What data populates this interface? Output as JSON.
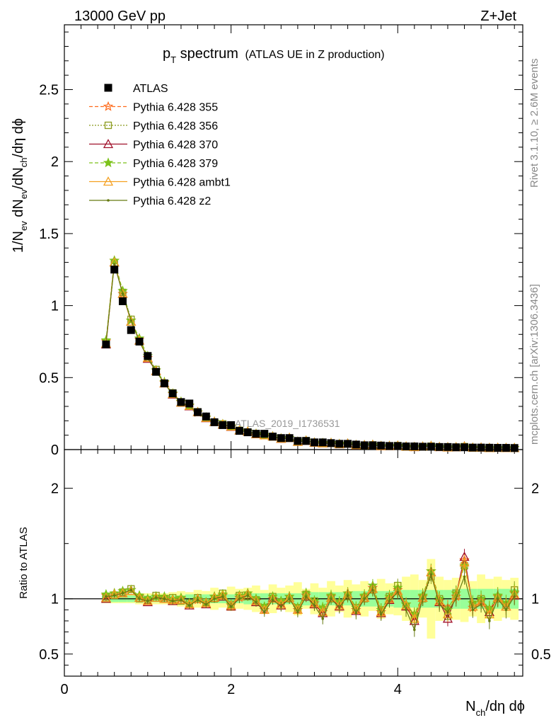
{
  "header": {
    "left": "13000 GeV pp",
    "right": "Z+Jet"
  },
  "title": {
    "main": "p",
    "main_sub": "T",
    "main_rest": " spectrum",
    "detail": "(ATLAS UE in Z production)"
  },
  "side_labels": {
    "rivet": "Rivet 3.1.10, ≥ 2.6M events",
    "mcplots": "mcplots.cern.ch [arXiv:1306.3436]"
  },
  "watermark": "ATLAS_2019_I1736531",
  "axes": {
    "ylabel_main": "1/N",
    "ylabel_main_parts": [
      "1/N",
      "ev",
      " dN",
      "ev",
      "/dN",
      "ch",
      "/dη dϕ"
    ],
    "ylabel_ratio": "Ratio to ATLAS",
    "xlabel_parts": [
      "N",
      "ch",
      "/dη dϕ"
    ],
    "main_yticks": [
      "0",
      "0.5",
      "1",
      "1.5",
      "2",
      "2.5"
    ],
    "ratio_yticks_left": [
      "0.5",
      "1",
      "2"
    ],
    "ratio_yticks_right": [
      "0.5",
      "1",
      "2"
    ],
    "xticks": [
      "0",
      "2",
      "4"
    ]
  },
  "legend": [
    {
      "label": "ATLAS",
      "color": "#000000",
      "marker": "square-filled",
      "line": "none"
    },
    {
      "label": "Pythia 6.428 355",
      "color": "#ff6a1a",
      "marker": "star-open",
      "line": "dashed"
    },
    {
      "label": "Pythia 6.428 356",
      "color": "#8a9a1c",
      "marker": "square-open",
      "line": "dotted"
    },
    {
      "label": "Pythia 6.428 370",
      "color": "#a0102a",
      "marker": "triangle-open",
      "line": "solid"
    },
    {
      "label": "Pythia 6.428 379",
      "color": "#7cc21a",
      "marker": "star-filled",
      "line": "dashed"
    },
    {
      "label": "Pythia 6.428 ambt1",
      "color": "#f4a020",
      "marker": "triangle-open",
      "line": "solid"
    },
    {
      "label": "Pythia 6.428 z2",
      "color": "#667a12",
      "marker": "dot",
      "line": "solid"
    }
  ],
  "chart_data": {
    "type": "line",
    "xlim": [
      0,
      5.5
    ],
    "ylim_main": [
      0,
      2.95
    ],
    "ylim_ratio": [
      0.3,
      2.35
    ],
    "x": [
      0.5,
      0.6,
      0.7,
      0.8,
      0.9,
      1.0,
      1.1,
      1.2,
      1.3,
      1.4,
      1.5,
      1.6,
      1.7,
      1.8,
      1.9,
      2.0,
      2.1,
      2.2,
      2.3,
      2.4,
      2.5,
      2.6,
      2.7,
      2.8,
      2.9,
      3.0,
      3.1,
      3.2,
      3.3,
      3.4,
      3.5,
      3.6,
      3.7,
      3.8,
      3.9,
      4.0,
      4.1,
      4.2,
      4.3,
      4.4,
      4.5,
      4.6,
      4.7,
      4.8,
      4.9,
      5.0,
      5.1,
      5.2,
      5.3,
      5.4
    ],
    "data_values": [
      0.73,
      1.25,
      1.03,
      0.83,
      0.75,
      0.65,
      0.54,
      0.46,
      0.39,
      0.33,
      0.32,
      0.26,
      0.23,
      0.19,
      0.17,
      0.17,
      0.13,
      0.12,
      0.11,
      0.11,
      0.09,
      0.08,
      0.08,
      0.06,
      0.06,
      0.05,
      0.05,
      0.045,
      0.04,
      0.04,
      0.035,
      0.03,
      0.03,
      0.028,
      0.025,
      0.025,
      0.022,
      0.022,
      0.02,
      0.02,
      0.018,
      0.018,
      0.016,
      0.016,
      0.014,
      0.014,
      0.013,
      0.012,
      0.012,
      0.011
    ],
    "ratio_band_inner": [
      0.03,
      0.03,
      0.03,
      0.03,
      0.03,
      0.03,
      0.03,
      0.03,
      0.03,
      0.03,
      0.04,
      0.04,
      0.04,
      0.04,
      0.04,
      0.04,
      0.04,
      0.05,
      0.05,
      0.05,
      0.05,
      0.05,
      0.05,
      0.05,
      0.06,
      0.06,
      0.06,
      0.06,
      0.06,
      0.06,
      0.07,
      0.07,
      0.07,
      0.07,
      0.07,
      0.08,
      0.08,
      0.08,
      0.08,
      0.08,
      0.08,
      0.08,
      0.09,
      0.09,
      0.09,
      0.09,
      0.09,
      0.09,
      0.09,
      0.09
    ],
    "ratio_band_outer": [
      0.04,
      0.04,
      0.04,
      0.04,
      0.05,
      0.05,
      0.05,
      0.05,
      0.06,
      0.07,
      0.06,
      0.08,
      0.07,
      0.1,
      0.08,
      0.11,
      0.09,
      0.1,
      0.12,
      0.08,
      0.13,
      0.1,
      0.12,
      0.15,
      0.09,
      0.14,
      0.1,
      0.16,
      0.12,
      0.17,
      0.13,
      0.16,
      0.11,
      0.18,
      0.14,
      0.15,
      0.2,
      0.22,
      0.17,
      0.36,
      0.2,
      0.17,
      0.19,
      0.21,
      0.16,
      0.22,
      0.18,
      0.2,
      0.17,
      0.19
    ],
    "series": [
      {
        "name": "Pythia 6.428 355",
        "ratio": [
          1.03,
          1.05,
          1.05,
          1.08,
          1.02,
          0.98,
          1.02,
          1.01,
          0.99,
          1.0,
          0.95,
          0.99,
          0.96,
          1.02,
          1.03,
          0.94,
          1.01,
          1.05,
          0.98,
          0.9,
          1.0,
          0.96,
          1.02,
          0.9,
          1.03,
          0.96,
          0.88,
          1.02,
          0.95,
          1.05,
          0.9,
          1.02,
          1.1,
          0.88,
          1.0,
          1.08,
          0.95,
          0.85,
          1.02,
          1.25,
          0.98,
          0.92,
          1.02,
          1.35,
          0.92,
          0.98,
          0.9,
          1.02,
          0.95,
          1.05
        ]
      },
      {
        "name": "Pythia 6.428 356",
        "ratio": [
          1.02,
          1.03,
          1.06,
          1.09,
          1.0,
          0.99,
          1.03,
          1.0,
          1.01,
          0.98,
          0.96,
          1.01,
          0.97,
          1.0,
          1.05,
          0.95,
          1.03,
          1.02,
          0.99,
          0.92,
          1.02,
          0.97,
          1.0,
          0.92,
          1.04,
          0.98,
          0.9,
          1.0,
          0.96,
          1.02,
          0.92,
          1.0,
          1.08,
          0.9,
          1.02,
          1.12,
          0.93,
          0.85,
          1.0,
          1.2,
          1.0,
          0.84,
          1.05,
          1.3,
          0.95,
          1.0,
          0.9,
          1.0,
          0.94,
          1.08
        ]
      },
      {
        "name": "Pythia 6.428 370",
        "ratio": [
          1.0,
          1.04,
          1.05,
          1.07,
          1.01,
          0.97,
          1.01,
          1.0,
          0.98,
          0.99,
          0.94,
          1.0,
          0.95,
          1.01,
          1.02,
          0.93,
          1.02,
          1.04,
          0.97,
          0.9,
          1.01,
          0.94,
          1.01,
          0.9,
          1.02,
          0.95,
          0.87,
          1.01,
          0.93,
          1.04,
          0.89,
          1.01,
          1.09,
          0.87,
          0.99,
          1.07,
          0.93,
          0.8,
          1.01,
          1.24,
          0.97,
          0.82,
          1.03,
          1.38,
          0.93,
          0.97,
          0.88,
          1.01,
          0.93,
          1.03
        ]
      },
      {
        "name": "Pythia 6.428 379",
        "ratio": [
          1.04,
          1.05,
          1.07,
          1.08,
          1.03,
          1.0,
          1.02,
          1.02,
          1.0,
          1.01,
          0.96,
          1.0,
          0.97,
          1.02,
          1.04,
          0.95,
          1.03,
          1.05,
          1.0,
          0.93,
          1.02,
          0.98,
          1.02,
          0.92,
          1.05,
          0.98,
          0.92,
          1.03,
          0.97,
          1.05,
          0.92,
          1.03,
          1.12,
          0.9,
          1.02,
          1.1,
          0.95,
          0.86,
          1.03,
          1.25,
          1.0,
          0.9,
          1.05,
          1.3,
          0.96,
          1.0,
          0.91,
          1.03,
          0.96,
          1.06
        ]
      },
      {
        "name": "Pythia 6.428 ambt1",
        "ratio": [
          1.01,
          1.04,
          1.05,
          1.07,
          1.01,
          0.98,
          1.01,
          1.0,
          0.99,
          0.99,
          0.95,
          1.0,
          0.96,
          1.01,
          1.03,
          0.94,
          1.02,
          1.04,
          0.98,
          0.9,
          1.0,
          0.95,
          1.01,
          0.9,
          1.03,
          0.96,
          0.88,
          1.01,
          0.94,
          1.04,
          0.9,
          1.01,
          1.09,
          0.88,
          1.0,
          1.07,
          0.94,
          0.82,
          1.01,
          1.24,
          0.98,
          0.86,
          1.03,
          1.33,
          0.93,
          0.97,
          0.86,
          1.01,
          0.93,
          1.04
        ]
      },
      {
        "name": "Pythia 6.428 z2",
        "ratio": [
          1.02,
          1.03,
          1.05,
          1.08,
          1.0,
          0.98,
          1.01,
          1.0,
          0.98,
          0.99,
          0.94,
          0.99,
          0.95,
          1.0,
          1.02,
          0.93,
          1.0,
          1.03,
          0.97,
          0.88,
          0.99,
          0.93,
          1.0,
          0.88,
          1.02,
          0.94,
          0.82,
          1.0,
          0.92,
          1.03,
          0.87,
          1.0,
          1.08,
          0.86,
          0.98,
          1.06,
          0.9,
          0.72,
          1.0,
          1.22,
          0.95,
          0.88,
          1.0,
          1.2,
          0.9,
          0.95,
          0.8,
          1.0,
          0.9,
          1.02
        ]
      }
    ]
  }
}
